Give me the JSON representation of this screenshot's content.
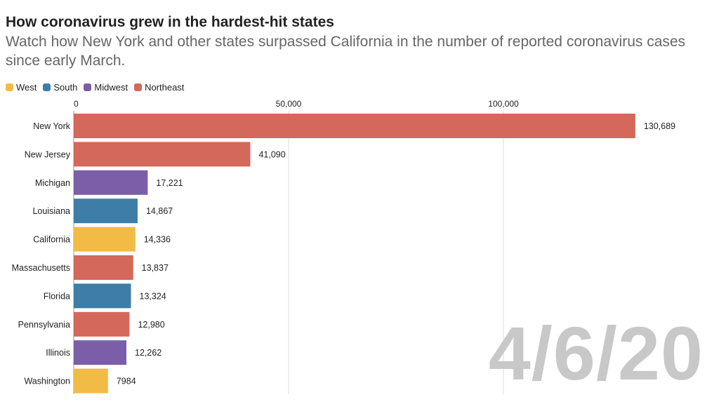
{
  "header": {
    "title": "How coronavirus grew in the hardest-hit states",
    "subtitle": "Watch how New York and other states surpassed California in the number of reported coronavirus cases since early March."
  },
  "legend": [
    {
      "name": "West",
      "color": "#f2bb46"
    },
    {
      "name": "South",
      "color": "#3e7ea6"
    },
    {
      "name": "Midwest",
      "color": "#7b5ea7"
    },
    {
      "name": "Northeast",
      "color": "#d4685a"
    }
  ],
  "date_label": "4/6/20",
  "chart_data": {
    "type": "bar",
    "orientation": "horizontal",
    "categories": [
      "New York",
      "New Jersey",
      "Michigan",
      "Louisiana",
      "California",
      "Massachusetts",
      "Florida",
      "Pennsylvania",
      "Illinois",
      "Washington"
    ],
    "values": [
      130689,
      41090,
      17221,
      14867,
      14336,
      13837,
      13324,
      12980,
      12262,
      7984
    ],
    "value_labels": [
      "130,689",
      "41,090",
      "17,221",
      "14,867",
      "14,336",
      "13,837",
      "13,324",
      "12,980",
      "12,262",
      "7984"
    ],
    "regions": [
      "Northeast",
      "Northeast",
      "Midwest",
      "South",
      "West",
      "Northeast",
      "South",
      "Northeast",
      "Midwest",
      "West"
    ],
    "xticks": [
      0,
      50000,
      100000
    ],
    "xtick_labels": [
      "0",
      "50,000",
      "100,000"
    ],
    "xlim": [
      0,
      148000
    ],
    "grid": true,
    "axis_position": "top"
  }
}
